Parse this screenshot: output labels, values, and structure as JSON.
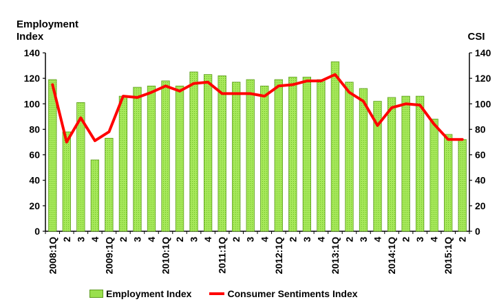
{
  "chart_data": {
    "type": "bar",
    "left_axis_title": [
      "Employment",
      "Index"
    ],
    "right_axis_title": "CSI",
    "ylim": [
      0,
      140
    ],
    "y_ticks": [
      0,
      20,
      40,
      60,
      80,
      100,
      120,
      140
    ],
    "categories": [
      "2008:1Q",
      "2",
      "3",
      "4",
      "2009:1Q",
      "2",
      "3",
      "4",
      "2010:1Q",
      "2",
      "3",
      "4",
      "2011:1Q",
      "2",
      "3",
      "4",
      "2012:1Q",
      "2",
      "3",
      "4",
      "2013:1Q",
      "2",
      "3",
      "4",
      "2014:1Q",
      "2",
      "3",
      "4",
      "2015:1Q",
      "2"
    ],
    "series": [
      {
        "name": "Employment Index",
        "type": "bar",
        "color": "#99e04d",
        "values": [
          119,
          78,
          101,
          56,
          73,
          106,
          113,
          114,
          118,
          114,
          125,
          123,
          122,
          117,
          119,
          114,
          119,
          121,
          121,
          119,
          133,
          117,
          112,
          102,
          105,
          106,
          106,
          88,
          76,
          72
        ]
      },
      {
        "name": "Consumer Sentiments Index",
        "type": "line",
        "color": "#ff0000",
        "values": [
          115,
          70,
          89,
          71,
          78,
          106,
          105,
          109,
          114,
          110,
          116,
          117,
          108,
          108,
          108,
          106,
          114,
          115,
          118,
          118,
          123,
          109,
          102,
          83,
          97,
          100,
          99,
          84,
          72,
          72
        ]
      }
    ],
    "grid": false,
    "legend_position": "bottom"
  }
}
